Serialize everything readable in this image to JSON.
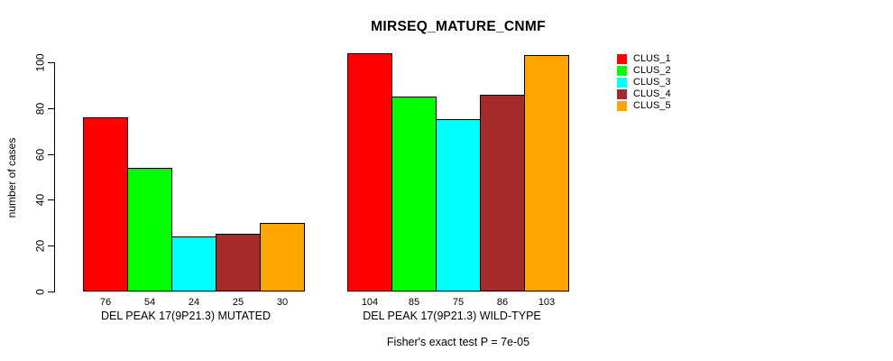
{
  "title": "MIRSEQ_MATURE_CNMF",
  "chart_data": {
    "type": "bar",
    "title": "MIRSEQ_MATURE_CNMF",
    "xlabel": "",
    "ylabel": "number of cases",
    "ylim": [
      0,
      104
    ],
    "yticks": [
      0,
      20,
      40,
      60,
      80,
      100
    ],
    "grid": false,
    "legend_position": "right",
    "categories": [
      "DEL PEAK 17(9P21.3) MUTATED",
      "DEL PEAK 17(9P21.3) WILD-TYPE"
    ],
    "series": [
      {
        "name": "CLUS_1",
        "color": "#FF0000",
        "values": [
          76,
          104
        ]
      },
      {
        "name": "CLUS_2",
        "color": "#00FF00",
        "values": [
          54,
          85
        ]
      },
      {
        "name": "CLUS_3",
        "color": "#00FFFF",
        "values": [
          24,
          75
        ]
      },
      {
        "name": "CLUS_4",
        "color": "#A52A2A",
        "values": [
          25,
          86
        ]
      },
      {
        "name": "CLUS_5",
        "color": "#FFA500",
        "values": [
          30,
          103
        ]
      }
    ],
    "groups": [
      {
        "label": "DEL PEAK 17(9P21.3) MUTATED",
        "values": [
          76,
          54,
          24,
          25,
          30
        ]
      },
      {
        "label": "DEL PEAK 17(9P21.3) WILD-TYPE",
        "values": [
          104,
          85,
          75,
          86,
          103
        ]
      }
    ],
    "bar_value_labels_shown": true,
    "annotation": "Fisher's exact test P = 7e-05"
  }
}
